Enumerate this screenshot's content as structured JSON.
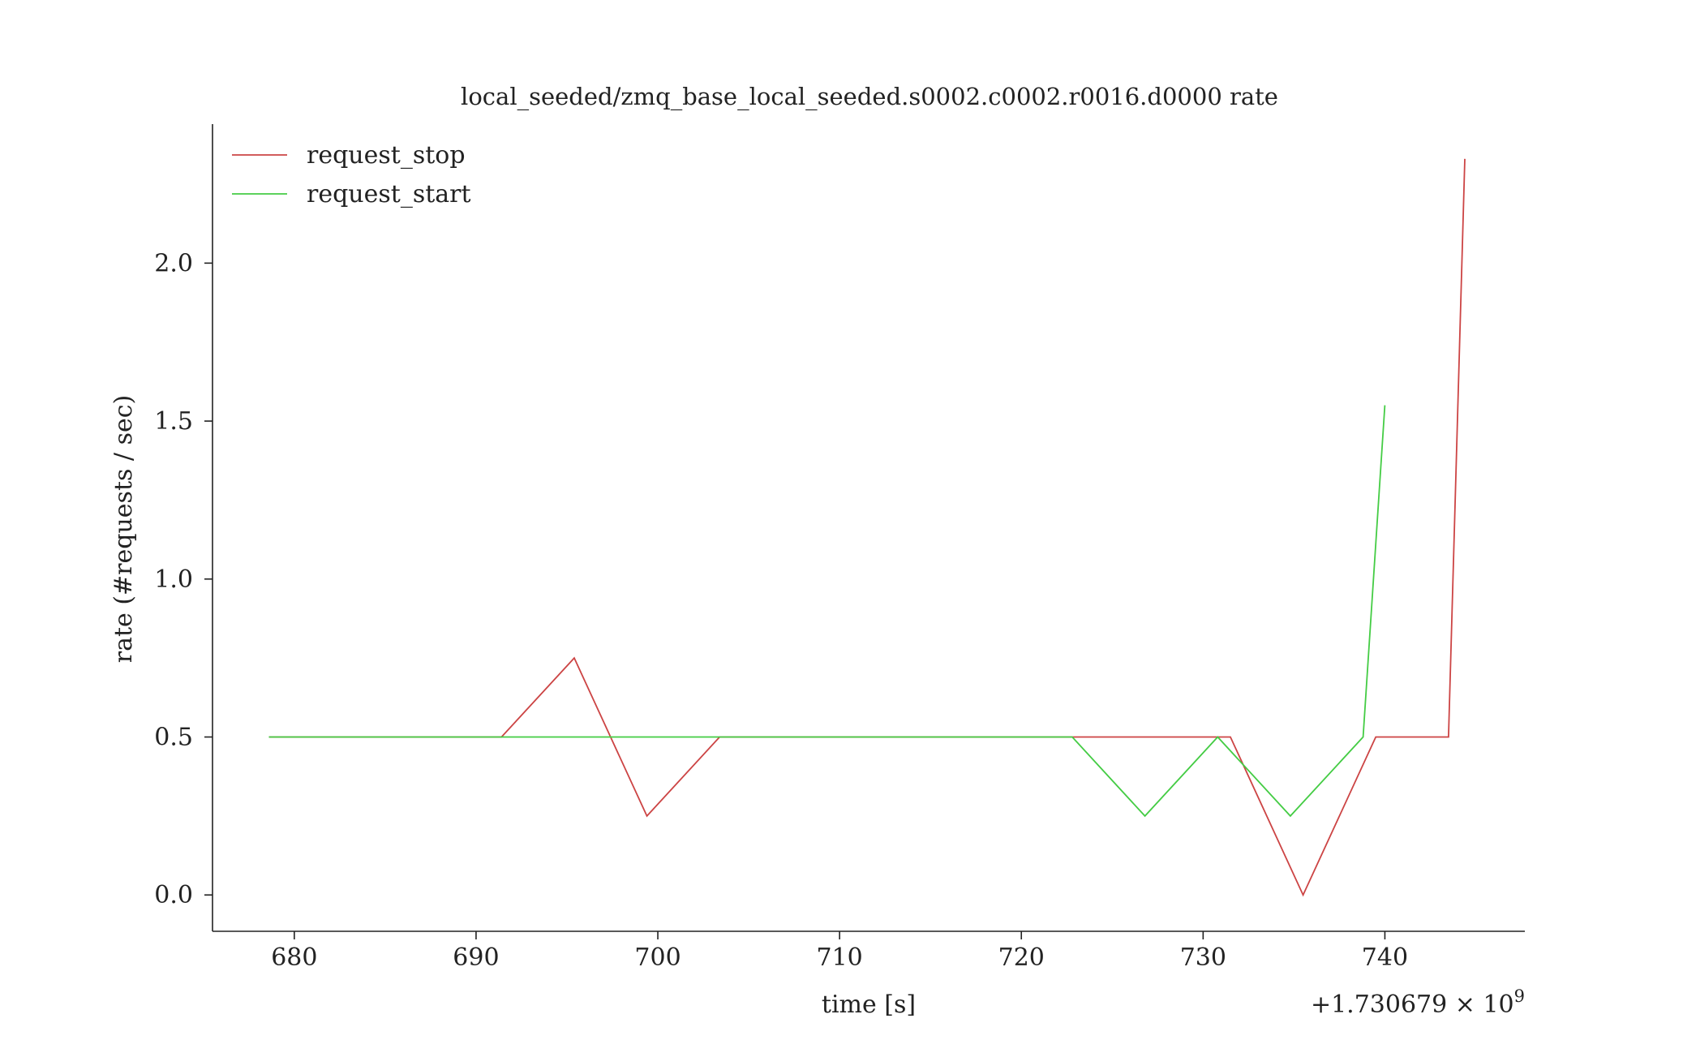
{
  "chart_data": {
    "type": "line",
    "title": "local_seeded/zmq_base_local_seeded.s0002.c0002.r0016.d0000 rate",
    "xlabel": "time [s]",
    "ylabel": "rate (#requests / sec)",
    "x_offset_label": "+1.730679 × 10",
    "x_offset_exponent": "9",
    "xlim": [
      675.5,
      747.7
    ],
    "ylim": [
      -0.115,
      2.44
    ],
    "x_ticks": [
      680,
      690,
      700,
      710,
      720,
      730,
      740
    ],
    "x_tick_labels": [
      "680",
      "690",
      "700",
      "710",
      "720",
      "730",
      "740"
    ],
    "y_ticks": [
      0.0,
      0.5,
      1.0,
      1.5,
      2.0
    ],
    "y_tick_labels": [
      "0.0",
      "0.5",
      "1.0",
      "1.5",
      "2.0"
    ],
    "grid": false,
    "legend_position": "top-left",
    "series": [
      {
        "name": "request_stop",
        "color": "#cc4444",
        "x": [
          678.6,
          691.4,
          695.4,
          699.4,
          703.4,
          722.8,
          726.8,
          730.8,
          731.5,
          735.5,
          739.5,
          743.5,
          744.4
        ],
        "y": [
          0.5,
          0.5,
          0.75,
          0.25,
          0.5,
          0.5,
          0.5,
          0.5,
          0.5,
          0.0,
          0.5,
          0.5,
          2.33
        ]
      },
      {
        "name": "request_start",
        "color": "#44cc44",
        "x": [
          678.6,
          691.4,
          695.4,
          699.4,
          703.4,
          722.8,
          726.8,
          730.8,
          734.8,
          738.8,
          740.0
        ],
        "y": [
          0.5,
          0.5,
          0.5,
          0.5,
          0.5,
          0.5,
          0.25,
          0.5,
          0.25,
          0.5,
          1.55
        ]
      }
    ]
  }
}
